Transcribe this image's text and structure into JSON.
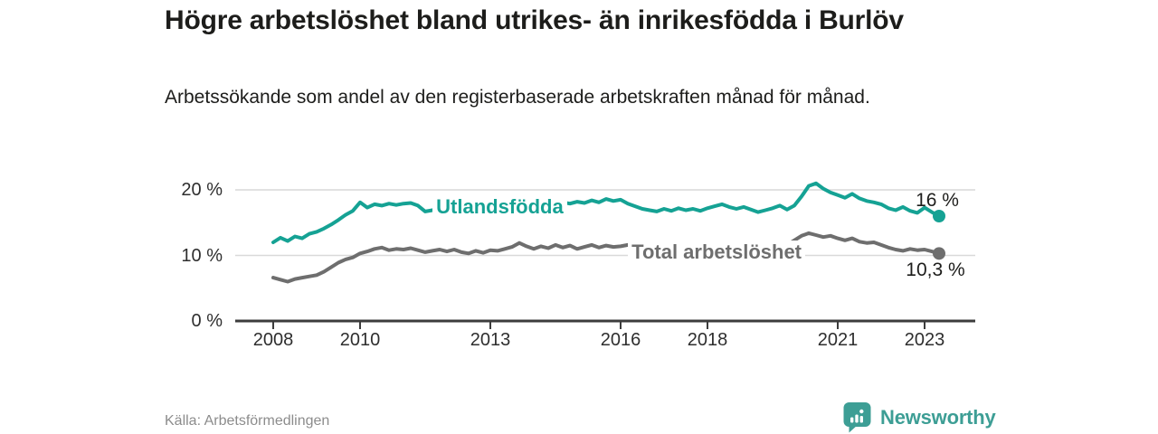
{
  "header": {
    "title": "Högre arbetslöshet bland utrikes- än inrikesfödda i Burlöv",
    "subtitle": "Arbetssökande som andel av den registerbaserade arbetskraften månad för månad."
  },
  "footer": {
    "source": "Källa: Arbetsförmedlingen",
    "brand": "Newsworthy",
    "brand_color": "#3d9e95"
  },
  "chart_data": {
    "type": "line",
    "title": "Högre arbetslöshet bland utrikes- än inrikesfödda i Burlöv",
    "xlabel": "",
    "ylabel": "Arbetssökande som andel av den registerbaserade arbetskraften",
    "unit": "%",
    "start_year": 2008,
    "start_month": 1,
    "interval_months": 2,
    "ylim": [
      0,
      22
    ],
    "grid": "horizontal",
    "axis_color": "#3c3c3c",
    "grid_color": "#d9d9d9",
    "yticks": [
      {
        "value": 0,
        "label": "0 %"
      },
      {
        "value": 10,
        "label": "10 %"
      },
      {
        "value": 20,
        "label": "20 %"
      }
    ],
    "xticks": [
      {
        "year": 2008,
        "label": "2008"
      },
      {
        "year": 2010,
        "label": "2010"
      },
      {
        "year": 2013,
        "label": "2013"
      },
      {
        "year": 2016,
        "label": "2016"
      },
      {
        "year": 2018,
        "label": "2018"
      },
      {
        "year": 2021,
        "label": "2021"
      },
      {
        "year": 2023,
        "label": "2023"
      }
    ],
    "series": [
      {
        "name": "Utlandsfödda",
        "color": "#15a294",
        "end_label": "16 %",
        "end_label_offset": {
          "dx": -2,
          "dy": -28
        },
        "name_label_anchor": {
          "year": 2011.67,
          "value": 17.4
        },
        "values": [
          12.0,
          12.7,
          12.2,
          12.9,
          12.6,
          13.3,
          13.6,
          14.1,
          14.7,
          15.4,
          16.2,
          16.8,
          18.1,
          17.3,
          17.8,
          17.6,
          17.9,
          17.7,
          17.9,
          18.0,
          17.6,
          16.7,
          16.9,
          17.4,
          17.4,
          17.0,
          17.5,
          17.2,
          17.6,
          17.3,
          17.5,
          17.2,
          17.6,
          17.4,
          17.7,
          17.5,
          17.8,
          17.6,
          18.0,
          17.7,
          18.1,
          17.9,
          18.2,
          18.0,
          18.4,
          18.1,
          18.6,
          18.3,
          18.5,
          17.9,
          17.5,
          17.1,
          16.9,
          16.7,
          17.1,
          16.8,
          17.2,
          16.9,
          17.1,
          16.8,
          17.2,
          17.5,
          17.8,
          17.4,
          17.1,
          17.4,
          17.0,
          16.6,
          16.9,
          17.2,
          17.6,
          17.0,
          17.6,
          19.0,
          20.6,
          21.0,
          20.2,
          19.6,
          19.2,
          18.8,
          19.4,
          18.7,
          18.3,
          18.1,
          17.8,
          17.2,
          16.9,
          17.4,
          16.8,
          16.5,
          17.3,
          16.6,
          16.0
        ]
      },
      {
        "name": "Total arbetslöshet",
        "color": "#6e6e6e",
        "end_label": "10,3 %",
        "end_label_offset": {
          "dx": -4,
          "dy": 8
        },
        "name_label_anchor": {
          "year": 2016.17,
          "value": 10.45
        },
        "values": [
          6.6,
          6.3,
          6.0,
          6.4,
          6.6,
          6.8,
          7.0,
          7.5,
          8.2,
          8.9,
          9.4,
          9.7,
          10.3,
          10.6,
          11.0,
          11.2,
          10.8,
          11.0,
          10.9,
          11.1,
          10.8,
          10.5,
          10.7,
          10.9,
          10.6,
          10.9,
          10.5,
          10.3,
          10.7,
          10.4,
          10.8,
          10.7,
          11.0,
          11.3,
          11.9,
          11.4,
          11.0,
          11.4,
          11.1,
          11.6,
          11.2,
          11.5,
          11.0,
          11.3,
          11.6,
          11.2,
          11.5,
          11.3,
          11.4,
          11.6,
          11.3,
          11.5,
          11.2,
          11.4,
          11.2,
          11.5,
          11.3,
          11.6,
          11.4,
          11.2,
          11.3,
          11.5,
          11.2,
          11.4,
          11.6,
          11.3,
          11.1,
          11.3,
          11.0,
          11.2,
          11.4,
          11.6,
          12.3,
          13.0,
          13.4,
          13.1,
          12.8,
          13.0,
          12.6,
          12.3,
          12.6,
          12.1,
          11.9,
          12.0,
          11.6,
          11.2,
          10.9,
          10.7,
          11.0,
          10.8,
          10.9,
          10.6,
          10.3
        ]
      }
    ]
  }
}
